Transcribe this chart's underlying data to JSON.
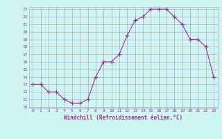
{
  "x": [
    0,
    1,
    2,
    3,
    4,
    5,
    6,
    7,
    8,
    9,
    10,
    11,
    12,
    13,
    14,
    15,
    16,
    17,
    18,
    19,
    20,
    21,
    22,
    23
  ],
  "y": [
    13,
    13,
    12,
    12,
    11,
    10.5,
    10.5,
    11,
    14,
    16,
    16,
    17,
    19.5,
    21.5,
    22,
    23,
    23,
    23,
    22,
    21,
    19,
    19,
    18,
    14
  ],
  "line_color": "#993399",
  "marker": "+",
  "marker_size": 4,
  "bg_color": "#cef5f0",
  "grid_color": "#aaaacc",
  "xlabel": "Windchill (Refroidissement éolien,°C)",
  "xlabel_color": "#993399",
  "tick_color": "#993399",
  "ylim": [
    10,
    23
  ],
  "xlim": [
    0,
    23
  ],
  "yticks": [
    10,
    11,
    12,
    13,
    14,
    15,
    16,
    17,
    18,
    19,
    20,
    21,
    22,
    23
  ],
  "xticks": [
    0,
    1,
    2,
    3,
    4,
    5,
    6,
    7,
    8,
    9,
    10,
    11,
    12,
    13,
    14,
    15,
    16,
    17,
    18,
    19,
    20,
    21,
    22,
    23
  ]
}
